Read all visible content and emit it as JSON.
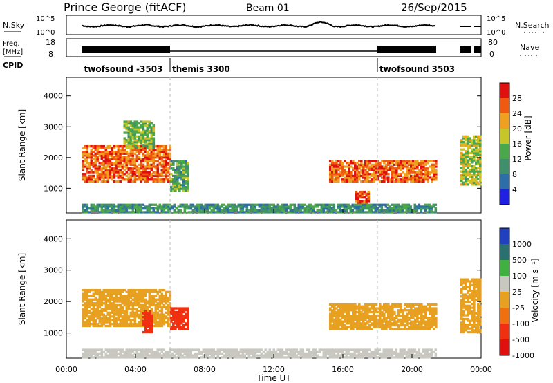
{
  "header": {
    "station": "Prince George (fitACF)",
    "beam": "Beam 01",
    "date": "26/Sep/2015"
  },
  "noise_panel": {
    "left_label": "N.Sky",
    "left_ticks": [
      "10^5",
      "10^0"
    ],
    "right_label": "N.Search",
    "right_ticks": [
      "10^5",
      "10^0"
    ]
  },
  "freq_panel": {
    "left_label_line1": "Freq.",
    "left_label_line2": "[MHz]",
    "left_ticks": [
      "18",
      "8"
    ],
    "right_label": "Nave",
    "right_ticks": [
      "80",
      "0"
    ]
  },
  "cpid_panel": {
    "label": "CPID",
    "segments": [
      {
        "name": "twofsound -3503",
        "start_hour": 0.9,
        "end_hour": 6.0
      },
      {
        "name": "themis 3300",
        "start_hour": 6.0,
        "end_hour": 18.0
      },
      {
        "name": "twofsound 3503",
        "start_hour": 18.0,
        "end_hour": 24.0
      }
    ]
  },
  "chart_data": [
    {
      "type": "heatmap",
      "title": "",
      "ylabel": "Slant Range [km]",
      "xlabel": "",
      "xlim": [
        0,
        24
      ],
      "ylim": [
        200,
        4600
      ],
      "yticks": [
        "1000",
        "2000",
        "3000",
        "4000"
      ],
      "colorbar_label": "Power [dB]",
      "colorbar_ticks": [
        "4",
        "8",
        "12",
        "16",
        "20",
        "24",
        "28"
      ],
      "colorbar_range": [
        0,
        30
      ],
      "colors": [
        "#2020e0",
        "#2d6ea8",
        "#3f8f6a",
        "#4aa84a",
        "#c6c628",
        "#f0a020",
        "#f05a10",
        "#e01010"
      ],
      "features": [
        {
          "t0": 0.9,
          "t1": 6.0,
          "r0": 1200,
          "r1": 2400,
          "value": 24
        },
        {
          "t0": 3.3,
          "t1": 5.0,
          "r0": 2300,
          "r1": 3200,
          "value": 14
        },
        {
          "t0": 6.0,
          "t1": 7.0,
          "r0": 900,
          "r1": 1900,
          "value": 12
        },
        {
          "t0": 15.2,
          "t1": 21.4,
          "r0": 1200,
          "r1": 1900,
          "value": 24
        },
        {
          "t0": 16.7,
          "t1": 17.5,
          "r0": 500,
          "r1": 900,
          "value": 26
        },
        {
          "t0": 22.8,
          "t1": 24.0,
          "r0": 1100,
          "r1": 2700,
          "value": 16
        },
        {
          "t0": 0.9,
          "t1": 21.4,
          "r0": 200,
          "r1": 450,
          "value": 10
        }
      ]
    },
    {
      "type": "heatmap",
      "title": "",
      "ylabel": "Slant Range [km]",
      "xlabel": "Time UT",
      "xlim": [
        0,
        24
      ],
      "ylim": [
        200,
        4600
      ],
      "yticks": [
        "1000",
        "2000",
        "3000",
        "4000"
      ],
      "xticks": [
        "00:00",
        "04:00",
        "08:00",
        "12:00",
        "16:00",
        "20:00",
        "00:00"
      ],
      "colorbar_label": "Velocity [m s⁻¹]",
      "colorbar_ticks": [
        "1000",
        "500",
        "100",
        "25",
        "-25",
        "-100",
        "-500",
        "-1000"
      ],
      "colors": [
        "#2040c0",
        "#2a7070",
        "#40b040",
        "#c8c8c0",
        "#e8a020",
        "#f07010",
        "#f03010",
        "#e01010"
      ],
      "features": [
        {
          "t0": 0.9,
          "t1": 6.0,
          "r0": 1200,
          "r1": 2400,
          "value": 0
        },
        {
          "t0": 4.4,
          "t1": 5.0,
          "r0": 1000,
          "r1": 1700,
          "value": -150
        },
        {
          "t0": 6.0,
          "t1": 7.0,
          "r0": 1100,
          "r1": 1800,
          "value": -150
        },
        {
          "t0": 15.2,
          "t1": 21.4,
          "r0": 1100,
          "r1": 1900,
          "value": 0
        },
        {
          "t0": 22.8,
          "t1": 24.0,
          "r0": 1000,
          "r1": 2700,
          "value": 0
        },
        {
          "t0": 0.9,
          "t1": 21.4,
          "r0": 200,
          "r1": 450,
          "value": 50
        }
      ]
    }
  ]
}
